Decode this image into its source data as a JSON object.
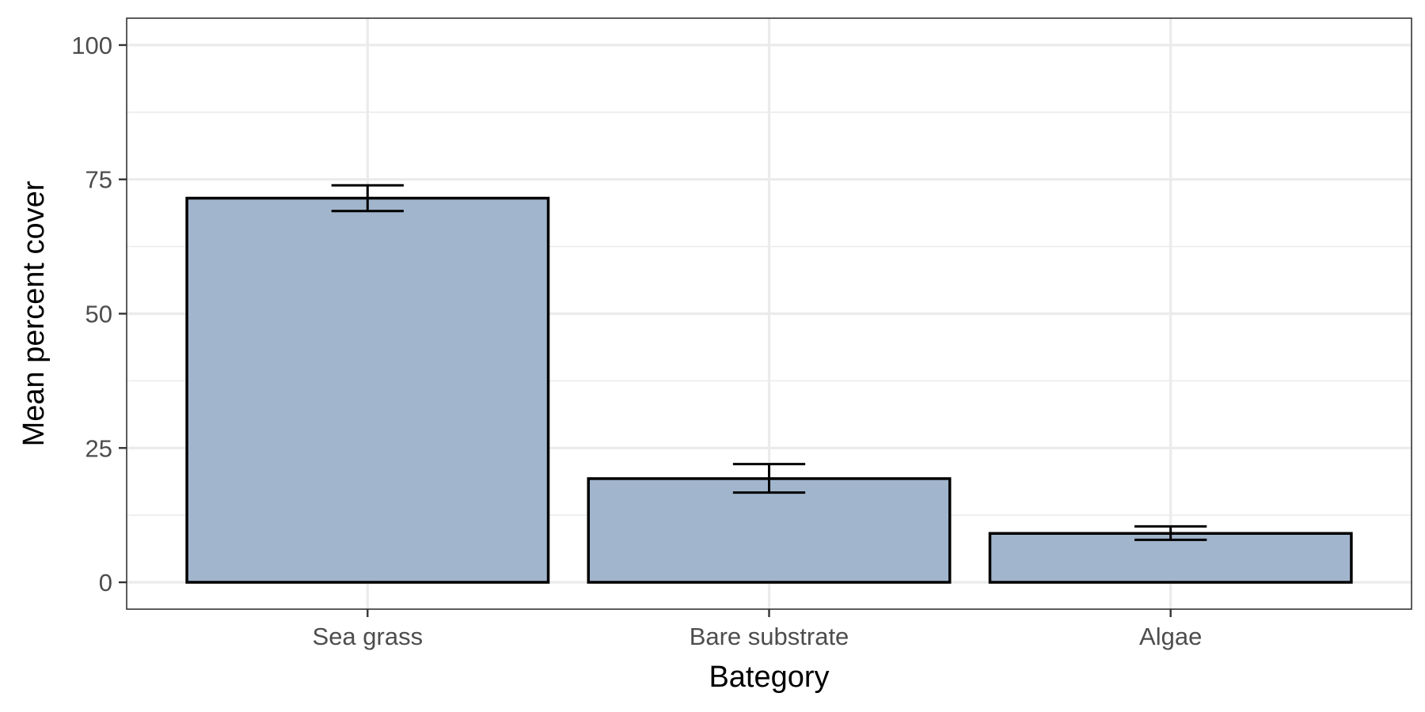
{
  "chart_data": {
    "type": "bar",
    "categories": [
      "Sea grass",
      "Bare substrate",
      "Algae"
    ],
    "values": [
      71.5,
      19.3,
      9.1
    ],
    "error_bars": [
      {
        "lower": 69.1,
        "upper": 73.9
      },
      {
        "lower": 16.7,
        "upper": 22.0
      },
      {
        "lower": 7.9,
        "upper": 10.4
      }
    ],
    "xlabel": "Bategory",
    "ylabel": "Mean percent cover",
    "ylim": [
      -5,
      105
    ],
    "yticks": [
      0,
      25,
      50,
      75,
      100
    ],
    "yticks_text": [
      "0",
      "25",
      "50",
      "75",
      "100"
    ],
    "grid": true,
    "legend": "none",
    "colors": {
      "bar_fill": "#a1b5cc",
      "bar_stroke": "#000000",
      "grid": "#ebebeb",
      "panel_border": "#333333"
    }
  }
}
